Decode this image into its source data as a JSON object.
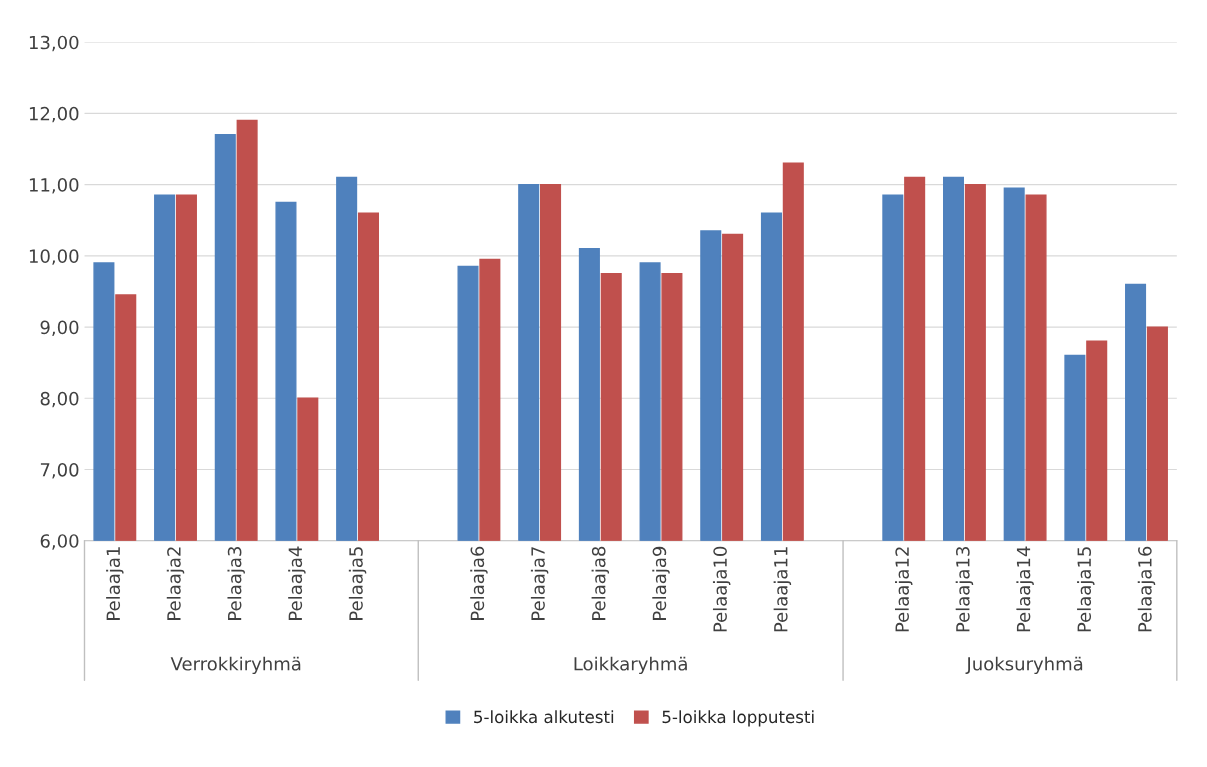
{
  "chart_data": {
    "type": "bar",
    "categories": [
      "Pelaaja1",
      "Pelaaja2",
      "Pelaaja3",
      "Pelaaja4",
      "Pelaaja5",
      null,
      "Pelaaja6",
      "Pelaaja7",
      "Pelaaja8",
      "Pelaaja9",
      "Pelaaja10",
      "Pelaaja11",
      null,
      "Pelaaja12",
      "Pelaaja13",
      "Pelaaja14",
      "Pelaaja15",
      "Pelaaja16"
    ],
    "series": [
      {
        "name": "5-loikka alkutesti",
        "color": "#4f81bd",
        "values": [
          9.9,
          10.85,
          11.7,
          10.75,
          11.1,
          null,
          9.85,
          11.0,
          10.1,
          9.9,
          10.35,
          10.6,
          null,
          10.85,
          11.1,
          10.95,
          8.6,
          9.6
        ]
      },
      {
        "name": "5-loikka lopputesti",
        "color": "#c0504d",
        "values": [
          9.45,
          10.85,
          11.9,
          8.0,
          10.6,
          null,
          9.95,
          11.0,
          9.75,
          9.75,
          10.3,
          11.3,
          null,
          11.1,
          11.0,
          10.85,
          8.8,
          9.0
        ]
      }
    ],
    "ylim": [
      6,
      13
    ],
    "yticks": [
      {
        "value": 6,
        "label": "6,00"
      },
      {
        "value": 7,
        "label": "7,00"
      },
      {
        "value": 8,
        "label": "8,00"
      },
      {
        "value": 9,
        "label": "9,00"
      },
      {
        "value": 10,
        "label": "10,00"
      },
      {
        "value": 11,
        "label": "11,00"
      },
      {
        "value": 12,
        "label": "12,00"
      },
      {
        "value": 13,
        "label": "13,00"
      }
    ],
    "grid": "y",
    "legend": "bottom",
    "annotations": [
      "Verrokkiryhmä",
      "Loikkaryhmä",
      "Juoksuryhmä"
    ]
  }
}
